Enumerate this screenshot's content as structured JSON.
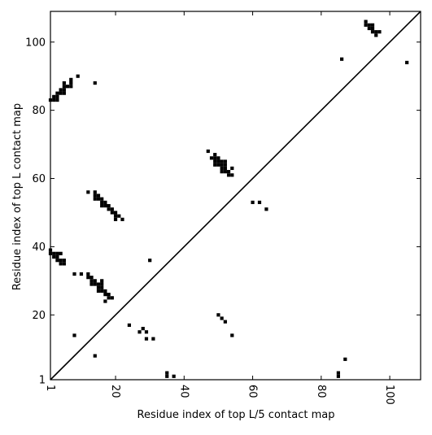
{
  "chart_data": {
    "type": "scatter",
    "title": "",
    "xlabel": "Residue index of top L/5 contact map",
    "ylabel": "Residue index of top L contact map",
    "xlim": [
      1,
      109
    ],
    "ylim": [
      1,
      109
    ],
    "x_ticks": [
      1,
      20,
      40,
      60,
      80,
      100
    ],
    "y_ticks": [
      1,
      20,
      40,
      60,
      80,
      100
    ],
    "x_tick_labels": [
      "1",
      "20",
      "40",
      "60",
      "80",
      "100"
    ],
    "y_tick_labels": [
      "1",
      "20",
      "40",
      "60",
      "80",
      "100"
    ],
    "x_tick_rotation": -90,
    "grid": false,
    "legend": "none",
    "diagonal_line": [
      [
        1,
        1
      ],
      [
        109,
        109
      ]
    ],
    "marker": "filled-square",
    "colors": {
      "points": "#000000",
      "axes": "#000000",
      "background": "#ffffff"
    },
    "series": [
      {
        "points": [
          [
            1,
            83
          ],
          [
            2,
            83
          ],
          [
            3,
            83
          ],
          [
            2,
            84
          ],
          [
            3,
            84
          ],
          [
            3,
            85
          ],
          [
            4,
            85
          ],
          [
            4,
            86
          ],
          [
            5,
            85
          ],
          [
            5,
            86
          ],
          [
            5,
            87
          ],
          [
            5,
            88
          ],
          [
            6,
            87
          ],
          [
            7,
            87
          ],
          [
            7,
            88
          ],
          [
            7,
            89
          ],
          [
            9,
            90
          ],
          [
            14,
            88
          ],
          [
            86,
            95
          ],
          [
            93,
            105
          ],
          [
            93,
            106
          ],
          [
            94,
            104
          ],
          [
            94,
            105
          ],
          [
            95,
            104
          ],
          [
            95,
            105
          ],
          [
            95,
            103
          ],
          [
            96,
            102
          ],
          [
            96,
            103
          ],
          [
            97,
            103
          ],
          [
            105,
            94
          ],
          [
            1,
            38
          ],
          [
            1,
            39
          ],
          [
            2,
            37
          ],
          [
            2,
            38
          ],
          [
            3,
            37
          ],
          [
            3,
            38
          ],
          [
            3,
            36
          ],
          [
            4,
            35
          ],
          [
            4,
            36
          ],
          [
            4,
            38
          ],
          [
            5,
            35
          ],
          [
            5,
            36
          ],
          [
            8,
            32
          ],
          [
            10,
            32
          ],
          [
            8,
            14
          ],
          [
            12,
            31
          ],
          [
            12,
            32
          ],
          [
            13,
            29
          ],
          [
            13,
            30
          ],
          [
            13,
            31
          ],
          [
            14,
            29
          ],
          [
            14,
            30
          ],
          [
            15,
            27
          ],
          [
            15,
            28
          ],
          [
            15,
            29
          ],
          [
            16,
            27
          ],
          [
            16,
            28
          ],
          [
            16,
            29
          ],
          [
            16,
            30
          ],
          [
            17,
            24
          ],
          [
            17,
            26
          ],
          [
            17,
            27
          ],
          [
            18,
            25
          ],
          [
            18,
            26
          ],
          [
            19,
            25
          ],
          [
            30,
            36
          ],
          [
            12,
            56
          ],
          [
            14,
            54
          ],
          [
            14,
            55
          ],
          [
            14,
            56
          ],
          [
            15,
            54
          ],
          [
            15,
            55
          ],
          [
            16,
            52
          ],
          [
            16,
            53
          ],
          [
            16,
            54
          ],
          [
            17,
            52
          ],
          [
            17,
            53
          ],
          [
            18,
            51
          ],
          [
            18,
            52
          ],
          [
            19,
            50
          ],
          [
            19,
            51
          ],
          [
            20,
            48
          ],
          [
            20,
            49
          ],
          [
            20,
            50
          ],
          [
            21,
            49
          ],
          [
            22,
            48
          ],
          [
            14,
            8
          ],
          [
            24,
            17
          ],
          [
            27,
            15
          ],
          [
            28,
            16
          ],
          [
            29,
            13
          ],
          [
            29,
            15
          ],
          [
            31,
            13
          ],
          [
            35,
            2
          ],
          [
            35,
            3
          ],
          [
            37,
            2
          ],
          [
            47,
            68
          ],
          [
            48,
            66
          ],
          [
            49,
            64
          ],
          [
            49,
            65
          ],
          [
            49,
            66
          ],
          [
            49,
            67
          ],
          [
            50,
            64
          ],
          [
            50,
            65
          ],
          [
            50,
            66
          ],
          [
            51,
            62
          ],
          [
            51,
            63
          ],
          [
            51,
            64
          ],
          [
            51,
            65
          ],
          [
            52,
            62
          ],
          [
            52,
            63
          ],
          [
            52,
            64
          ],
          [
            52,
            65
          ],
          [
            53,
            61
          ],
          [
            53,
            62
          ],
          [
            54,
            61
          ],
          [
            54,
            63
          ],
          [
            50,
            20
          ],
          [
            51,
            19
          ],
          [
            52,
            18
          ],
          [
            54,
            14
          ],
          [
            60,
            53
          ],
          [
            62,
            53
          ],
          [
            64,
            51
          ],
          [
            85,
            2
          ],
          [
            85,
            3
          ],
          [
            87,
            7
          ]
        ]
      }
    ]
  }
}
